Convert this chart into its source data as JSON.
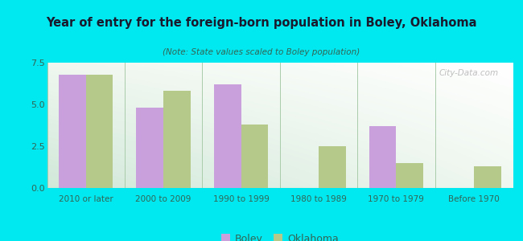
{
  "title": "Year of entry for the foreign-born population in Boley, Oklahoma",
  "subtitle": "(Note: State values scaled to Boley population)",
  "categories": [
    "2010 or later",
    "2000 to 2009",
    "1990 to 1999",
    "1980 to 1989",
    "1970 to 1979",
    "Before 1970"
  ],
  "boley_values": [
    6.8,
    4.8,
    6.2,
    0,
    3.7,
    0
  ],
  "oklahoma_values": [
    6.8,
    5.8,
    3.8,
    2.5,
    1.5,
    1.3
  ],
  "boley_color": "#c9a0dc",
  "oklahoma_color": "#b5c98a",
  "background_outer": "#00e8f0",
  "background_inner_top": "#f0f8f0",
  "background_inner_bottom": "#d0e8d8",
  "ylim": [
    0,
    7.5
  ],
  "yticks": [
    0,
    2.5,
    5,
    7.5
  ],
  "bar_width": 0.35,
  "legend_labels": [
    "Boley",
    "Oklahoma"
  ],
  "watermark": "City-Data.com",
  "title_color": "#1a1a2e",
  "subtitle_color": "#336655",
  "tick_color": "#336655"
}
